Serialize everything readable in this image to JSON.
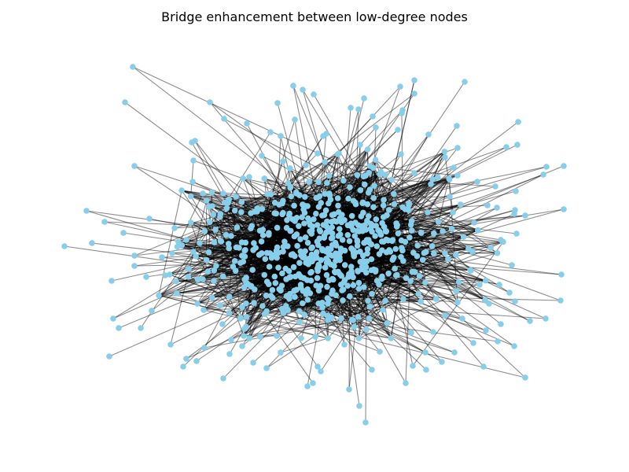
{
  "figure": {
    "title": "Bridge enhancement between low-degree nodes"
  },
  "graph": {
    "type": "network",
    "node_color": "#87ceeb",
    "edge_color": "#000000"
  }
}
